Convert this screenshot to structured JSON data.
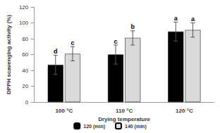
{
  "chart_data": {
    "type": "bar",
    "x_label": "Drying temperature",
    "y_label": "DPPH scavenging activity (%)",
    "categories": [
      "100 °C",
      "110 °C",
      "120 °C"
    ],
    "series": [
      {
        "name": "120 (min)",
        "color": "#000000",
        "values": [
          47,
          60,
          89
        ],
        "errors": [
          12,
          12,
          12
        ],
        "letters": [
          "d",
          "c",
          "a"
        ]
      },
      {
        "name": "140 (min)",
        "color": "#d9d9d9",
        "values": [
          61,
          81,
          91
        ],
        "errors": [
          9,
          9,
          9
        ],
        "letters": [
          "c",
          "b",
          "a"
        ]
      }
    ],
    "ylim": [
      0,
      120
    ],
    "yticks": [
      0,
      20,
      40,
      60,
      80,
      100,
      120
    ],
    "grid": false,
    "legend": "bottom"
  }
}
